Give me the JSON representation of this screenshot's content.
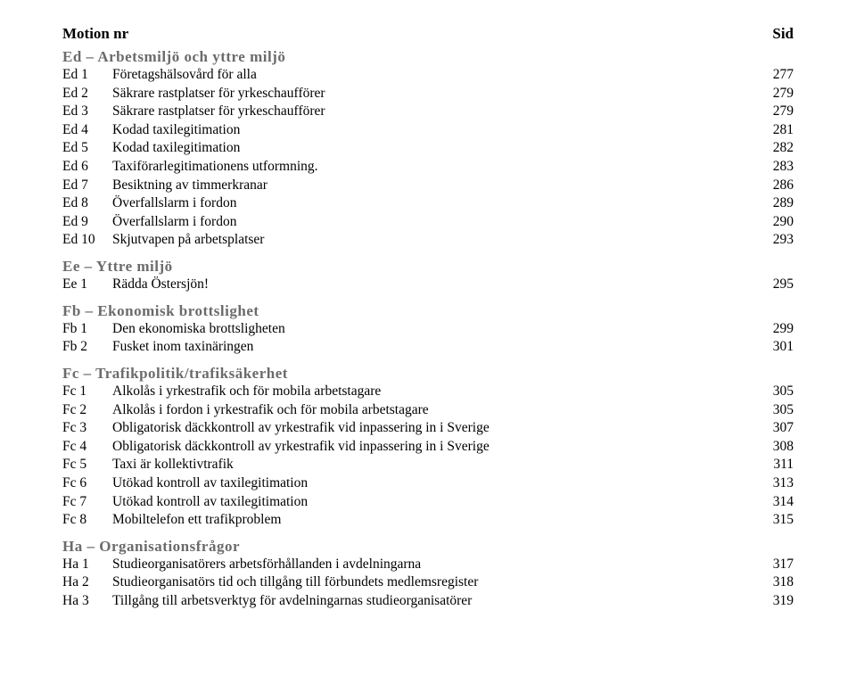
{
  "header": {
    "left": "Motion nr",
    "right": "Sid"
  },
  "sections": [
    {
      "heading": "Ed – Arbetsmiljö och yttre miljö",
      "entries": [
        {
          "code": "Ed 1",
          "title": "Företagshälsovård för alla",
          "page": "277"
        },
        {
          "code": "Ed 2",
          "title": "Säkrare rastplatser för yrkeschaufförer",
          "page": "279"
        },
        {
          "code": "Ed 3",
          "title": "Säkrare rastplatser för yrkeschaufförer",
          "page": "279"
        },
        {
          "code": "Ed 4",
          "title": "Kodad taxilegitimation",
          "page": "281"
        },
        {
          "code": "Ed 5",
          "title": "Kodad taxilegitimation",
          "page": "282"
        },
        {
          "code": "Ed 6",
          "title": "Taxiförarlegitimationens utformning.",
          "page": "283"
        },
        {
          "code": "Ed 7",
          "title": "Besiktning av timmerkranar",
          "page": "286"
        },
        {
          "code": "Ed 8",
          "title": "Överfallslarm i fordon",
          "page": "289"
        },
        {
          "code": "Ed 9",
          "title": "Överfallslarm i fordon",
          "page": "290"
        },
        {
          "code": "Ed 10",
          "title": "Skjutvapen på arbetsplatser",
          "page": "293"
        }
      ]
    },
    {
      "heading": "Ee – Yttre miljö",
      "entries": [
        {
          "code": "Ee 1",
          "title": "Rädda Östersjön!",
          "page": "295"
        }
      ]
    },
    {
      "heading": "Fb – Ekonomisk brottslighet",
      "entries": [
        {
          "code": "Fb 1",
          "title": "Den ekonomiska brottsligheten",
          "page": "299"
        },
        {
          "code": "Fb 2",
          "title": "Fusket inom taxinäringen",
          "page": "301"
        }
      ]
    },
    {
      "heading": "Fc – Trafikpolitik/trafiksäkerhet",
      "entries": [
        {
          "code": "Fc 1",
          "title": "Alkolås i yrkestrafik och för mobila arbetstagare",
          "page": "305"
        },
        {
          "code": "Fc 2",
          "title": "Alkolås i fordon i yrkestrafik och för mobila arbetstagare",
          "page": "305"
        },
        {
          "code": "Fc 3",
          "title": "Obligatorisk däckkontroll av yrkestrafik vid inpassering in i Sverige",
          "page": "307"
        },
        {
          "code": "Fc 4",
          "title": "Obligatorisk däckkontroll av yrkestrafik vid inpassering in i Sverige",
          "page": "308"
        },
        {
          "code": "Fc 5",
          "title": "Taxi är kollektivtrafik",
          "page": "311"
        },
        {
          "code": "Fc 6",
          "title": "Utökad kontroll av taxilegitimation",
          "page": "313"
        },
        {
          "code": "Fc 7",
          "title": "Utökad kontroll av taxilegitimation",
          "page": "314"
        },
        {
          "code": "Fc 8",
          "title": "Mobiltelefon ett trafikproblem",
          "page": "315"
        }
      ]
    },
    {
      "heading": "Ha – Organisationsfrågor",
      "entries": [
        {
          "code": "Ha 1",
          "title": "Studieorganisatörers arbetsförhållanden i avdelningarna",
          "page": "317"
        },
        {
          "code": "Ha 2",
          "title": "Studieorganisatörs tid och tillgång till förbundets medlemsregister",
          "page": "318"
        },
        {
          "code": "Ha 3",
          "title": "Tillgång till arbetsverktyg för avdelningarnas studieorganisatörer",
          "page": "319"
        }
      ]
    }
  ]
}
